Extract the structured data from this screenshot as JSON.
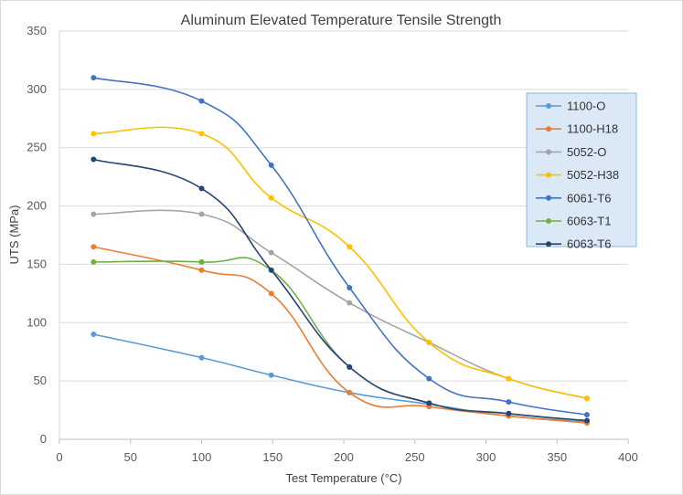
{
  "chart_data": {
    "type": "line",
    "title": "Aluminum Elevated Temperature Tensile Strength",
    "xlabel": "Test Temperature (°C)",
    "ylabel": "UTS (MPa)",
    "xlim": [
      0,
      400
    ],
    "ylim": [
      0,
      350
    ],
    "x_ticks": [
      0,
      50,
      100,
      150,
      200,
      250,
      300,
      350,
      400
    ],
    "y_ticks": [
      0,
      50,
      100,
      150,
      200,
      250,
      300,
      350
    ],
    "grid": "horizontal major gridlines",
    "legend_position": "right",
    "x": [
      24,
      100,
      149,
      204,
      260,
      316,
      371
    ],
    "series": [
      {
        "name": "1100-O",
        "color": "#5B9BD5",
        "values": [
          90,
          70,
          55,
          40,
          30,
          20,
          15
        ]
      },
      {
        "name": "1100-H18",
        "color": "#ED7D31",
        "values": [
          165,
          145,
          125,
          40,
          28,
          20,
          14
        ]
      },
      {
        "name": "5052-O",
        "color": "#A5A5A5",
        "values": [
          193,
          193,
          160,
          117,
          83,
          52,
          35
        ]
      },
      {
        "name": "5052-H38",
        "color": "#FFC000",
        "values": [
          262,
          262,
          207,
          165,
          83,
          52,
          35
        ]
      },
      {
        "name": "6061-T6",
        "color": "#4472C4",
        "values": [
          310,
          290,
          235,
          130,
          52,
          32,
          21
        ]
      },
      {
        "name": "6063-T1",
        "color": "#70AD47",
        "values": [
          152,
          152,
          145,
          62,
          31,
          22,
          16
        ]
      },
      {
        "name": "6063-T6",
        "color": "#264478",
        "values": [
          240,
          215,
          145,
          62,
          31,
          22,
          16
        ]
      }
    ]
  }
}
